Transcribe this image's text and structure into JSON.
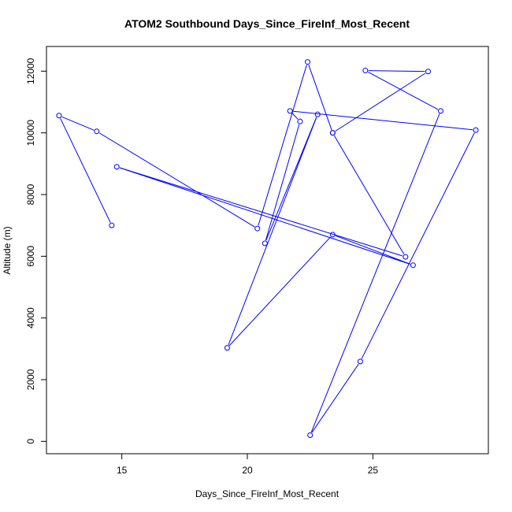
{
  "chart_data": {
    "type": "line",
    "title": "ATOM2 Southbound Days_Since_FireInf_Most_Recent",
    "xlabel": "Days_Since_FireInf_Most_Recent",
    "ylabel": "Altitude (m)",
    "xlim": [
      12,
      29.6
    ],
    "ylim": [
      -400,
      12800
    ],
    "xticks": [
      15,
      20,
      25
    ],
    "yticks": [
      0,
      2000,
      4000,
      6000,
      8000,
      10000,
      12000
    ],
    "grid": false,
    "series": [
      {
        "color": "#0000ff",
        "marker": "open-circle",
        "x": [
          14.6,
          12.5,
          14.0,
          20.4,
          22.4,
          23.4,
          26.3,
          14.8,
          26.6,
          23.4,
          19.2,
          22.8,
          20.7,
          22.1,
          21.7,
          29.1,
          24.5,
          22.5,
          27.7,
          24.7,
          27.2,
          23.4
        ],
        "y": [
          7000,
          10560,
          10050,
          6900,
          12300,
          10000,
          5980,
          8900,
          5710,
          6700,
          3030,
          10600,
          6420,
          10370,
          10710,
          10090,
          2590,
          200,
          10710,
          12020,
          11990,
          10000
        ]
      }
    ]
  }
}
